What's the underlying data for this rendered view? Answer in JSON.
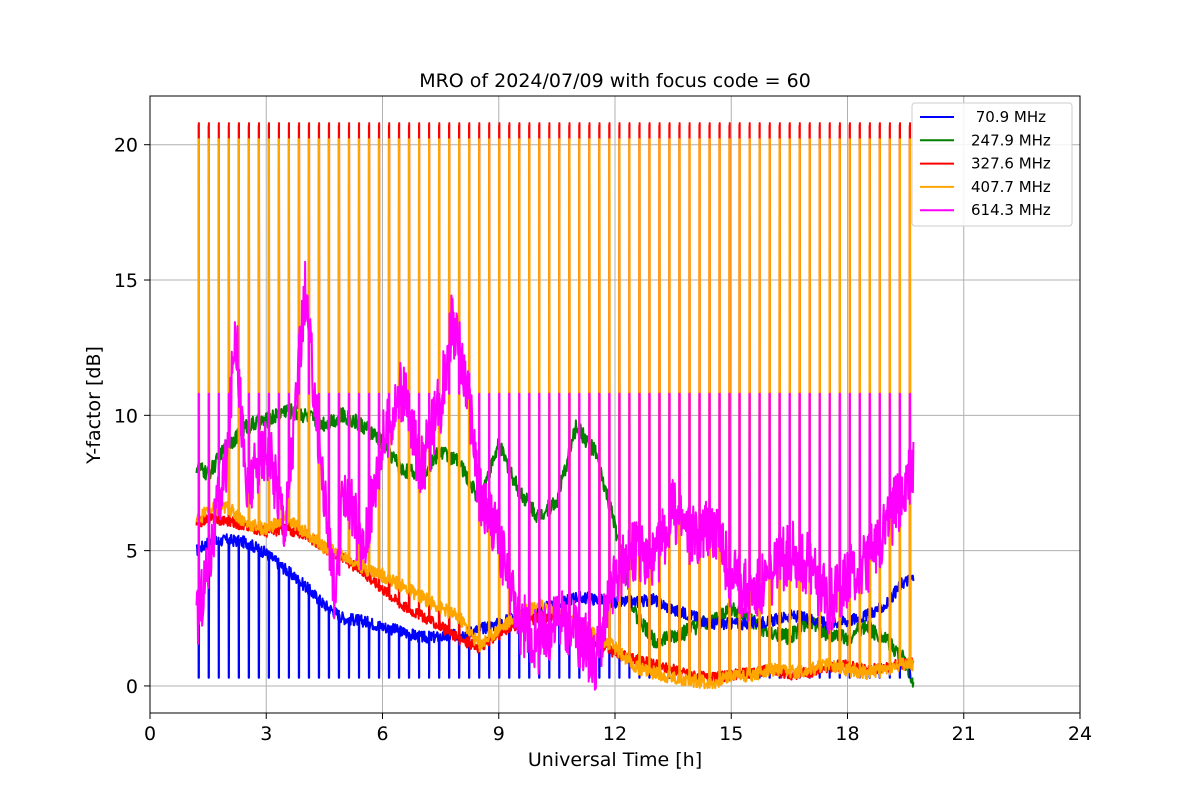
{
  "chart_data": {
    "type": "line",
    "title": "MRO of 2024/07/09 with focus code = 60",
    "xlabel": "Universal Time [h]",
    "ylabel": "Y-factor [dB]",
    "xlim": [
      0,
      24
    ],
    "ylim": [
      -1,
      21.8
    ],
    "xticks": [
      0,
      3,
      6,
      9,
      12,
      15,
      18,
      21,
      24
    ],
    "xtick_labels": [
      "0",
      "3",
      "6",
      "9",
      "12",
      "15",
      "18",
      "21",
      "24"
    ],
    "yticks": [
      0,
      5,
      10,
      15,
      20
    ],
    "ytick_labels": [
      "0",
      "5",
      "10",
      "15",
      "20"
    ],
    "grid": true,
    "legend_position": "top-right",
    "series": [
      {
        "name": " 70.9 MHz",
        "color": "#0000ff",
        "x": [
          1.2,
          1.5,
          2.0,
          2.5,
          3.0,
          3.5,
          4.0,
          4.5,
          5.0,
          5.5,
          6.0,
          6.5,
          7.0,
          7.5,
          8.0,
          8.5,
          9.0,
          9.5,
          10.0,
          10.5,
          11.0,
          11.5,
          12.0,
          12.5,
          13.0,
          13.5,
          14.0,
          14.5,
          15.0,
          15.5,
          16.0,
          16.5,
          17.0,
          17.5,
          18.0,
          18.5,
          19.0,
          19.4,
          19.7
        ],
        "y": [
          5.0,
          5.3,
          5.4,
          5.3,
          4.9,
          4.3,
          3.7,
          3.0,
          2.5,
          2.4,
          2.2,
          2.0,
          1.8,
          1.8,
          1.9,
          2.1,
          2.3,
          2.6,
          2.8,
          3.0,
          3.3,
          3.2,
          3.1,
          3.1,
          3.2,
          2.8,
          2.6,
          2.3,
          2.3,
          2.3,
          2.4,
          2.6,
          2.5,
          2.3,
          2.4,
          2.6,
          3.0,
          3.8,
          4.0
        ]
      },
      {
        "name": "247.9 MHz",
        "color": "#008000",
        "x": [
          1.2,
          1.5,
          2.0,
          2.5,
          3.0,
          3.5,
          4.0,
          4.5,
          5.0,
          5.5,
          6.0,
          6.5,
          7.0,
          7.5,
          8.0,
          8.5,
          9.0,
          9.5,
          10.0,
          10.5,
          11.0,
          11.5,
          12.0,
          12.5,
          13.0,
          13.5,
          14.0,
          14.5,
          15.0,
          15.5,
          16.0,
          16.5,
          17.0,
          17.5,
          18.0,
          18.5,
          19.0,
          19.4,
          19.7
        ],
        "y": [
          8.1,
          7.8,
          8.9,
          9.6,
          9.8,
          10.2,
          10.0,
          9.7,
          10.0,
          9.6,
          9.0,
          8.0,
          7.8,
          8.7,
          8.2,
          6.9,
          8.9,
          7.3,
          6.3,
          6.8,
          9.6,
          8.6,
          5.9,
          2.7,
          1.7,
          1.8,
          2.1,
          2.4,
          2.9,
          2.4,
          1.9,
          1.8,
          2.4,
          1.9,
          1.8,
          2.2,
          1.7,
          1.1,
          0.2
        ]
      },
      {
        "name": "327.6 MHz",
        "color": "#ff0000",
        "x": [
          1.2,
          1.5,
          2.0,
          2.5,
          3.0,
          3.5,
          4.0,
          4.5,
          5.0,
          5.5,
          6.0,
          6.5,
          7.0,
          7.5,
          8.0,
          8.5,
          9.0,
          9.5,
          10.0,
          10.5,
          11.0,
          11.5,
          12.0,
          12.5,
          13.0,
          13.5,
          14.0,
          14.5,
          15.0,
          15.5,
          16.0,
          16.5,
          17.0,
          17.5,
          18.0,
          18.5,
          19.0,
          19.4,
          19.7
        ],
        "y": [
          6.0,
          6.2,
          6.1,
          5.9,
          5.7,
          5.8,
          5.6,
          5.1,
          4.7,
          4.2,
          3.6,
          3.0,
          2.6,
          2.2,
          1.7,
          1.4,
          1.9,
          2.3,
          2.5,
          2.6,
          2.3,
          1.6,
          1.2,
          1.0,
          0.8,
          0.6,
          0.4,
          0.3,
          0.4,
          0.5,
          0.6,
          0.4,
          0.5,
          0.7,
          0.8,
          0.6,
          0.7,
          0.8,
          0.9
        ]
      },
      {
        "name": "407.7 MHz",
        "color": "#ffa500",
        "x": [
          1.2,
          1.5,
          2.0,
          2.5,
          3.0,
          3.5,
          4.0,
          4.5,
          5.0,
          5.5,
          6.0,
          6.5,
          7.0,
          7.5,
          8.0,
          8.5,
          9.0,
          9.5,
          10.0,
          10.5,
          11.0,
          11.5,
          12.0,
          12.5,
          13.0,
          13.5,
          14.0,
          14.5,
          15.0,
          15.5,
          16.0,
          16.5,
          17.0,
          17.5,
          18.0,
          18.5,
          19.0,
          19.4,
          19.7
        ],
        "y": [
          6.1,
          6.5,
          6.6,
          6.0,
          5.8,
          6.2,
          5.7,
          5.1,
          4.8,
          4.4,
          4.1,
          3.7,
          3.3,
          2.9,
          2.5,
          1.5,
          2.1,
          2.6,
          3.0,
          2.8,
          2.3,
          1.9,
          1.4,
          0.7,
          0.5,
          0.3,
          0.2,
          0.1,
          0.4,
          0.4,
          0.6,
          0.5,
          0.6,
          0.8,
          0.6,
          0.5,
          0.6,
          0.8,
          0.8
        ]
      },
      {
        "name": "614.3 MHz",
        "color": "#ff00ff",
        "x": [
          1.2,
          1.5,
          2.0,
          2.2,
          2.5,
          3.0,
          3.5,
          4.0,
          4.5,
          4.8,
          5.0,
          5.5,
          6.0,
          6.5,
          7.0,
          7.5,
          7.8,
          8.2,
          8.5,
          9.0,
          9.5,
          10.0,
          10.5,
          11.0,
          11.5,
          12.0,
          12.5,
          13.0,
          13.5,
          14.0,
          14.5,
          15.0,
          15.5,
          16.0,
          16.5,
          17.0,
          17.5,
          18.0,
          18.5,
          19.0,
          19.4,
          19.7
        ],
        "y": [
          2.3,
          4.5,
          8.5,
          13.5,
          7.0,
          9.0,
          6.0,
          14.5,
          7.0,
          3.0,
          7.5,
          5.0,
          9.0,
          11.0,
          8.0,
          10.5,
          13.5,
          11.0,
          7.0,
          5.5,
          2.5,
          1.5,
          2.5,
          2.0,
          1.0,
          4.0,
          5.0,
          4.5,
          6.5,
          5.5,
          6.0,
          4.0,
          3.5,
          4.0,
          5.0,
          4.5,
          3.0,
          4.0,
          4.5,
          6.0,
          7.0,
          8.0
        ]
      }
    ],
    "spikes": {
      "count": 72,
      "x_start": 1.25,
      "x_end": 19.6,
      "blue_dip_to": 0.3,
      "red_peak": 20.7,
      "orange_peak": 20.2,
      "magenta_peak": 10.8
    }
  }
}
